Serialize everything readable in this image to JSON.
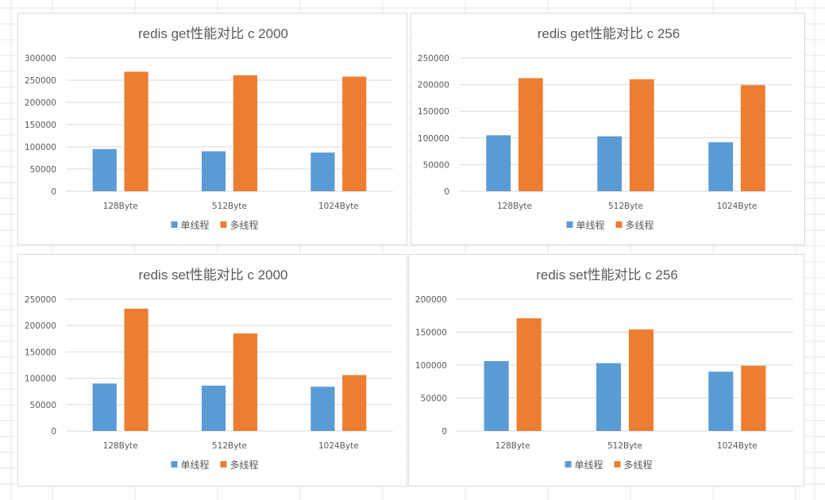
{
  "colors": {
    "single": "#5b9bd5",
    "multi": "#ed7d31",
    "grid": "#d9d9d9",
    "text": "#595959"
  },
  "chart_data": [
    {
      "type": "bar",
      "title": "redis get性能对比 c 2000",
      "categories": [
        "128Byte",
        "512Byte",
        "1024Byte"
      ],
      "series": [
        {
          "name": "单线程",
          "values": [
            95000,
            90000,
            87000
          ]
        },
        {
          "name": "多线程",
          "values": [
            269000,
            261000,
            258000
          ]
        }
      ],
      "ylim": [
        0,
        300000
      ],
      "yticks": [
        "0",
        "50000",
        "100000",
        "150000",
        "200000",
        "250000",
        "300000"
      ],
      "grid": true,
      "legend": "bottom"
    },
    {
      "type": "bar",
      "title": "redis get性能对比 c 256",
      "categories": [
        "128Byte",
        "512Byte",
        "1024Byte"
      ],
      "series": [
        {
          "name": "单线程",
          "values": [
            105000,
            103000,
            92000
          ]
        },
        {
          "name": "多线程",
          "values": [
            212000,
            210000,
            199000
          ]
        }
      ],
      "ylim": [
        0,
        250000
      ],
      "yticks": [
        "0",
        "50000",
        "100000",
        "150000",
        "200000",
        "250000"
      ],
      "grid": true,
      "legend": "bottom"
    },
    {
      "type": "bar",
      "title": "redis set性能对比 c 2000",
      "categories": [
        "128Byte",
        "512Byte",
        "1024Byte"
      ],
      "series": [
        {
          "name": "单线程",
          "values": [
            90000,
            86000,
            84000
          ]
        },
        {
          "name": "多线程",
          "values": [
            232000,
            185000,
            106000
          ]
        }
      ],
      "ylim": [
        0,
        250000
      ],
      "yticks": [
        "0",
        "50000",
        "100000",
        "150000",
        "200000",
        "250000"
      ],
      "grid": true,
      "legend": "bottom"
    },
    {
      "type": "bar",
      "title": "redis set性能对比 c 256",
      "categories": [
        "128Byte",
        "512Byte",
        "1024Byte"
      ],
      "series": [
        {
          "name": "单线程",
          "values": [
            106000,
            103000,
            90000
          ]
        },
        {
          "name": "多线程",
          "values": [
            171000,
            154000,
            99000
          ]
        }
      ],
      "ylim": [
        0,
        200000
      ],
      "yticks": [
        "0",
        "50000",
        "100000",
        "150000",
        "200000"
      ],
      "grid": true,
      "legend": "bottom"
    }
  ]
}
